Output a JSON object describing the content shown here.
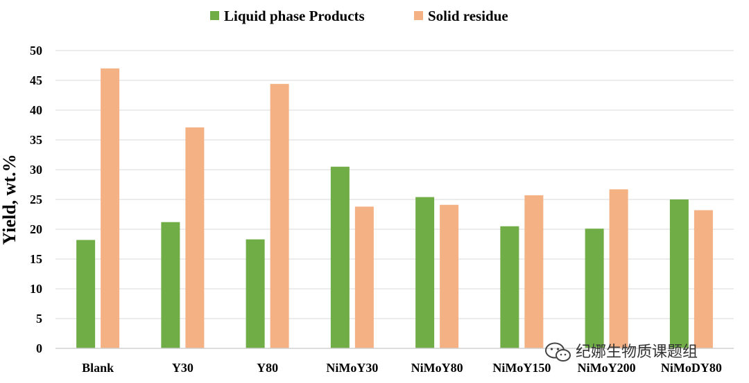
{
  "chart_data": {
    "type": "bar",
    "title": "",
    "xlabel": "",
    "ylabel": "Yield, wt.%",
    "ylim": [
      0,
      50
    ],
    "yticks": [
      0,
      5,
      10,
      15,
      20,
      25,
      30,
      35,
      40,
      45,
      50
    ],
    "grid": true,
    "legend_position": "top-center",
    "categories": [
      "Blank",
      "Y30",
      "Y80",
      "NiMoY30",
      "NiMoY80",
      "NiMoY150",
      "NiMoY200",
      "NiMoDY80"
    ],
    "series": [
      {
        "name": "Liquid phase Products",
        "color": "#70ad47",
        "values": [
          18.2,
          21.2,
          18.3,
          30.5,
          25.4,
          20.5,
          20.1,
          25.0
        ]
      },
      {
        "name": "Solid residue",
        "color": "#f4b183",
        "values": [
          47.0,
          37.1,
          44.4,
          23.8,
          24.1,
          25.7,
          26.7,
          23.2
        ]
      }
    ]
  },
  "watermark": {
    "text": "纪娜生物质课题组",
    "icon": "wechat-icon"
  }
}
